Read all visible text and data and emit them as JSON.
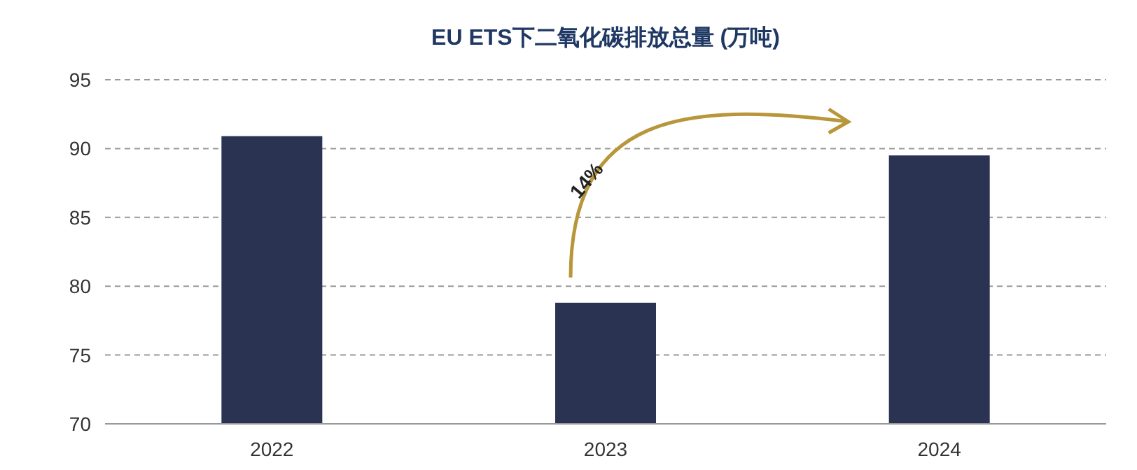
{
  "chart_data": {
    "type": "bar",
    "title": "EU ETS下二氧化碳排放总量 (万吨)",
    "categories": [
      "2022",
      "2023",
      "2024"
    ],
    "values": [
      90.9,
      78.8,
      89.5
    ],
    "color": "#2b3352",
    "ylim": [
      70,
      95
    ],
    "yticks": [
      70,
      75,
      80,
      85,
      90,
      95
    ],
    "grid": "y",
    "annotations": [
      "14%"
    ]
  }
}
